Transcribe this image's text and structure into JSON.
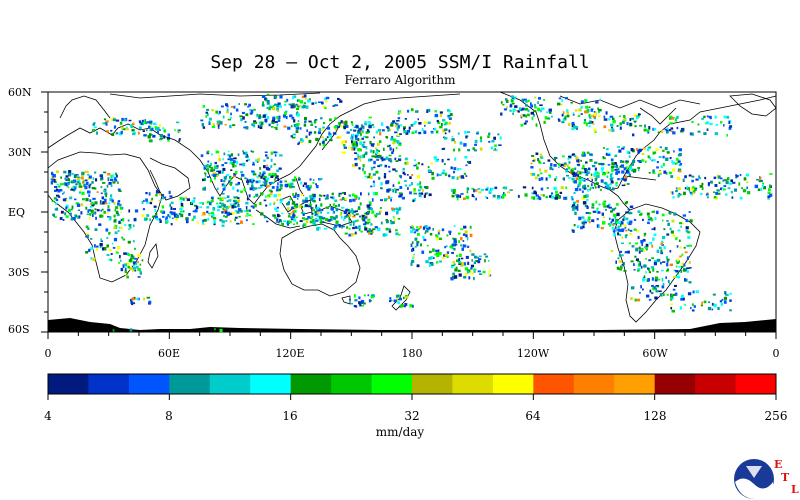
{
  "title": "Sep 28 – Oct 2, 2005 SSM/I Rainfall",
  "subtitle": "Ferraro Algorithm",
  "lat_labels": [
    "60N",
    "30N",
    "EQ",
    "30S",
    "60S"
  ],
  "lon_labels": [
    "0",
    "60E",
    "120E",
    "180",
    "120W",
    "60W",
    "0"
  ],
  "colorbar": {
    "labels": [
      "4",
      "8",
      "16",
      "32",
      "64",
      "128",
      "256"
    ],
    "units": "mm/day",
    "colors": [
      "#001a80",
      "#0033c8",
      "#0055ff",
      "#009999",
      "#00cccc",
      "#00ffff",
      "#009900",
      "#00c800",
      "#00ff00",
      "#b4b400",
      "#dcdc00",
      "#ffff00",
      "#ff5500",
      "#ff8000",
      "#ffa000",
      "#960000",
      "#c80000",
      "#ff0000"
    ]
  },
  "logo": {
    "name": "NOAA",
    "etl_letters": [
      "E",
      "T",
      "L"
    ]
  }
}
